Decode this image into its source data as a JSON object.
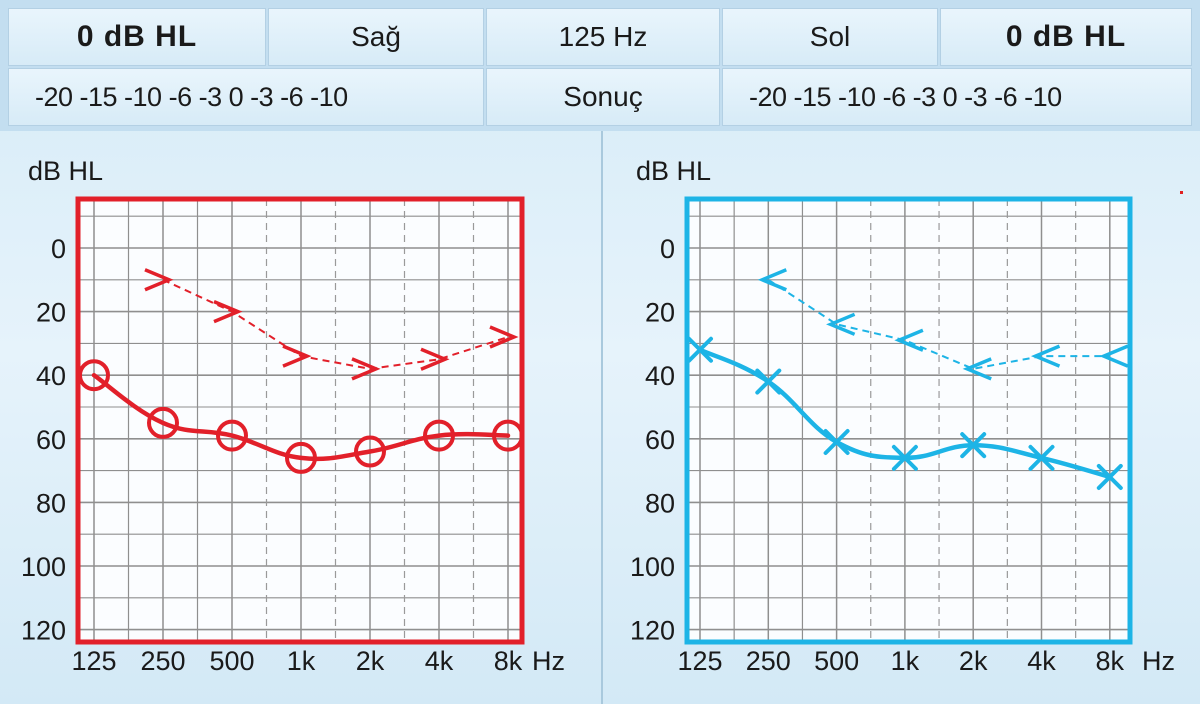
{
  "header": {
    "right_level": "0 dB  HL",
    "right_ear": "Sağ",
    "frequency": "125 Hz",
    "left_ear": "Sol",
    "left_level": "0 dB  HL",
    "right_scale": "-20  -15  -10  -6  -3  0  -3  -6  -10",
    "result": "Sonuç",
    "left_scale": "-20  -15  -10  -6  -3  0  -3  -6  -10"
  },
  "colors": {
    "right": "#e2202a",
    "left": "#1db4e6",
    "grid": "#8f8f8f",
    "background": "#e4f2fa"
  },
  "chart_data": [
    {
      "type": "line",
      "ear": "right",
      "ylabel": "dB  HL",
      "xunit": "Hz",
      "categories": [
        "125",
        "250",
        "500",
        "1k",
        "2k",
        "4k",
        "8k"
      ],
      "y_ticks": [
        "0",
        "20",
        "40",
        "60",
        "80",
        "100",
        "120"
      ],
      "ylim": [
        -15,
        120
      ],
      "y_inverted": true,
      "grid": true,
      "series": [
        {
          "marker": "circle",
          "line": "solid",
          "x": [
            0,
            1,
            2,
            3,
            4,
            5,
            6
          ],
          "values": [
            40,
            55,
            59,
            66,
            64,
            59,
            59
          ]
        },
        {
          "marker": "arrow-right",
          "line": "dashed",
          "x": [
            1,
            2,
            3,
            4,
            5,
            6
          ],
          "values": [
            10,
            20,
            34,
            38,
            35,
            28
          ]
        }
      ]
    },
    {
      "type": "line",
      "ear": "left",
      "ylabel": "dB  HL",
      "xunit": "Hz",
      "categories": [
        "125",
        "250",
        "500",
        "1k",
        "2k",
        "4k",
        "8k"
      ],
      "y_ticks": [
        "0",
        "20",
        "40",
        "60",
        "80",
        "100",
        "120"
      ],
      "ylim": [
        -15,
        120
      ],
      "y_inverted": true,
      "grid": true,
      "series": [
        {
          "marker": "x",
          "line": "solid",
          "x": [
            0,
            1,
            2,
            3,
            4,
            5,
            6
          ],
          "values": [
            32,
            42,
            61,
            66,
            62,
            66,
            72
          ]
        },
        {
          "marker": "arrow-left",
          "line": "dashed",
          "x": [
            1,
            2,
            3,
            4,
            5,
            6
          ],
          "values": [
            10,
            24,
            29,
            38,
            34,
            34
          ]
        }
      ]
    }
  ]
}
